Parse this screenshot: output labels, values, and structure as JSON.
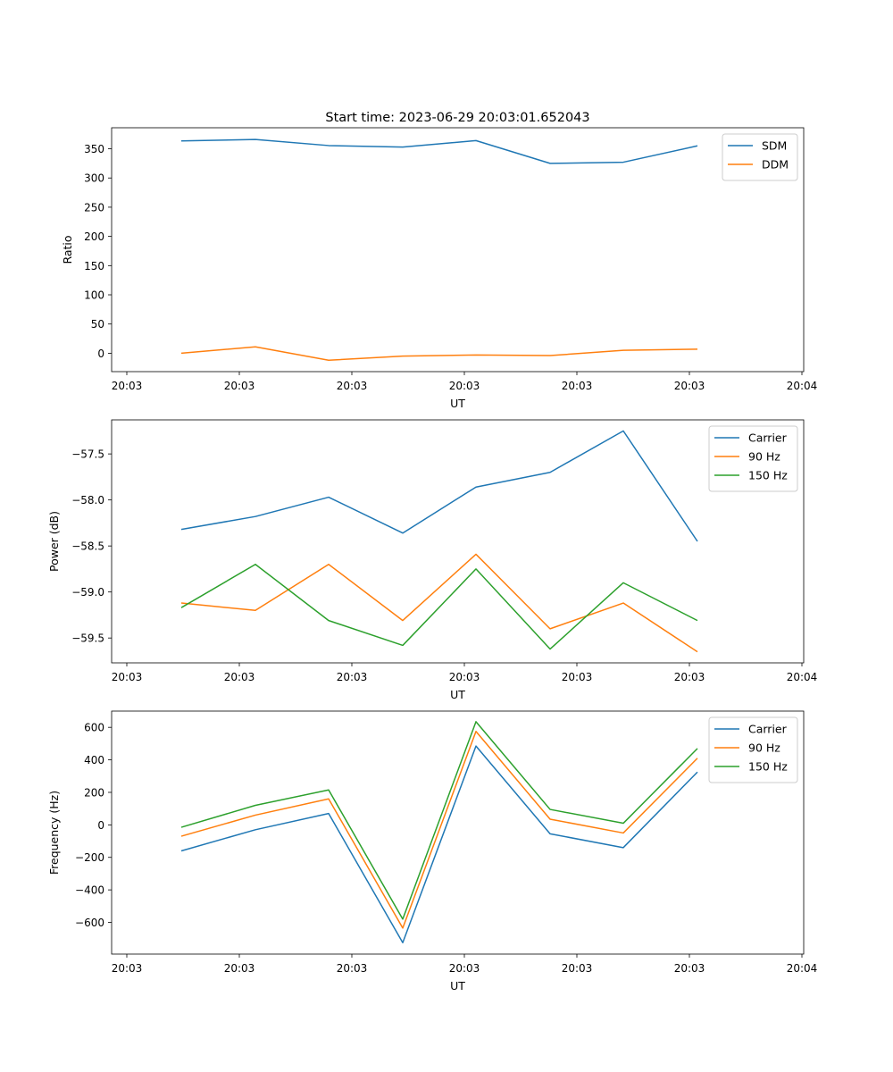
{
  "figure": {
    "title": "Start time: 2023-06-29 20:03:01.652043"
  },
  "chart_data": [
    {
      "type": "line",
      "xlabel": "UT",
      "ylabel": "Ratio",
      "x_tick_labels": [
        "20:03",
        "20:03",
        "20:03",
        "20:03",
        "20:03",
        "20:03",
        "20:04"
      ],
      "y_ticks": [
        0,
        50,
        100,
        150,
        200,
        250,
        300,
        350
      ],
      "ylim": [
        -31.5,
        386.0
      ],
      "legend_position": "top-right",
      "grid": false,
      "series": [
        {
          "name": "SDM",
          "color": "#1f77b4",
          "values": [
            363.5,
            366.0,
            355.5,
            353.0,
            364.0,
            325.0,
            327.0,
            355.0
          ]
        },
        {
          "name": "DDM",
          "color": "#ff7f0e",
          "values": [
            0.0,
            11.0,
            -12.0,
            -5.0,
            -3.0,
            -4.0,
            5.0,
            7.0
          ]
        }
      ]
    },
    {
      "type": "line",
      "xlabel": "UT",
      "ylabel": "Power (dB)",
      "x_tick_labels": [
        "20:03",
        "20:03",
        "20:03",
        "20:03",
        "20:03",
        "20:03",
        "20:04"
      ],
      "y_ticks": [
        -59.5,
        -59.0,
        -58.5,
        -58.0,
        -57.5
      ],
      "y_tick_labels": [
        "−59.5",
        "−59.0",
        "−58.5",
        "−58.0",
        "−57.5"
      ],
      "ylim": [
        -59.77,
        -57.13
      ],
      "legend_position": "top-right",
      "grid": false,
      "series": [
        {
          "name": "Carrier",
          "color": "#1f77b4",
          "values": [
            -58.32,
            -58.18,
            -57.97,
            -58.36,
            -57.86,
            -57.7,
            -57.25,
            -58.45
          ]
        },
        {
          "name": "90 Hz",
          "color": "#ff7f0e",
          "values": [
            -59.12,
            -59.2,
            -58.7,
            -59.31,
            -58.59,
            -59.4,
            -59.12,
            -59.65
          ]
        },
        {
          "name": "150 Hz",
          "color": "#2ca02c",
          "values": [
            -59.17,
            -58.7,
            -59.31,
            -59.58,
            -58.75,
            -59.62,
            -58.9,
            -59.31
          ]
        }
      ]
    },
    {
      "type": "line",
      "xlabel": "UT",
      "ylabel": "Frequency (Hz)",
      "x_tick_labels": [
        "20:03",
        "20:03",
        "20:03",
        "20:03",
        "20:03",
        "20:03",
        "20:04"
      ],
      "y_ticks": [
        -600,
        -400,
        -200,
        0,
        200,
        400,
        600
      ],
      "y_tick_labels": [
        "−600",
        "−400",
        "−200",
        "0",
        "200",
        "400",
        "600"
      ],
      "ylim": [
        -795.0,
        700.0
      ],
      "legend_position": "top-right",
      "grid": false,
      "series": [
        {
          "name": "Carrier",
          "color": "#1f77b4",
          "values": [
            -160,
            -30,
            70,
            -725,
            485,
            -55,
            -140,
            325
          ]
        },
        {
          "name": "90 Hz",
          "color": "#ff7f0e",
          "values": [
            -70,
            60,
            160,
            -635,
            575,
            35,
            -50,
            410
          ]
        },
        {
          "name": "150 Hz",
          "color": "#2ca02c",
          "values": [
            -15,
            120,
            215,
            -580,
            635,
            95,
            10,
            470
          ]
        }
      ]
    }
  ]
}
